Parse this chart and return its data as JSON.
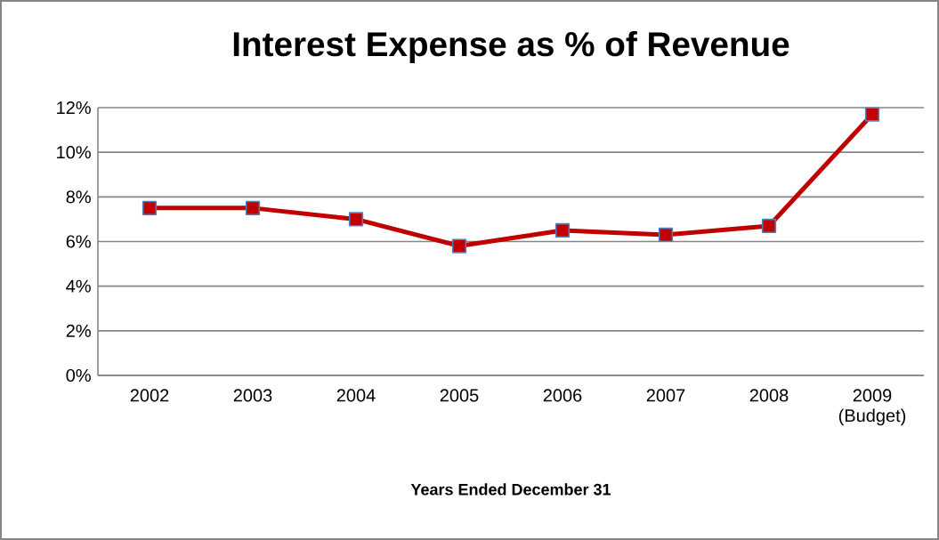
{
  "chart_data": {
    "type": "line",
    "title": "Interest Expense as % of Revenue",
    "xlabel": "Years Ended December 31",
    "categories": [
      "2002",
      "2003",
      "2004",
      "2005",
      "2006",
      "2007",
      "2008",
      "2009 (Budget)"
    ],
    "series": [
      {
        "color": "#c00000",
        "values": [
          7.5,
          7.5,
          7.0,
          5.8,
          6.5,
          6.3,
          6.7,
          11.7
        ]
      }
    ],
    "ylim": [
      0,
      12
    ],
    "yticks": [
      {
        "value": 0,
        "label": "0%"
      },
      {
        "value": 2,
        "label": "2%"
      },
      {
        "value": 4,
        "label": "4%"
      },
      {
        "value": 6,
        "label": "6%"
      },
      {
        "value": 8,
        "label": "8%"
      },
      {
        "value": 10,
        "label": "10%"
      },
      {
        "value": 12,
        "label": "12%"
      }
    ],
    "grid": "y",
    "marker": "square",
    "line_style": "solid"
  }
}
